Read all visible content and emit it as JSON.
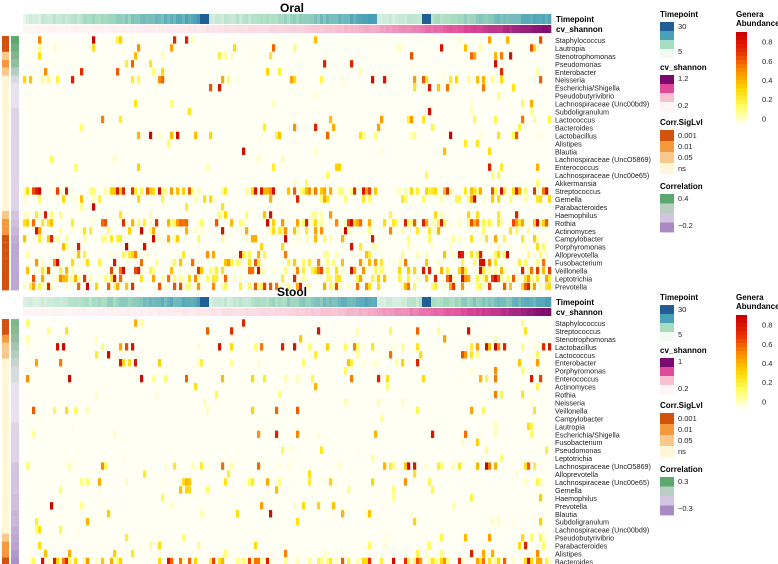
{
  "chart_data": [
    {
      "type": "heatmap",
      "title": "Oral",
      "annotation_labels": [
        "Timepoint",
        "cv_shannon"
      ],
      "rows": [
        "Staphylococcus",
        "Lautropia",
        "Stenotrophomonas",
        "Pseudomonas",
        "Enterobacter",
        "Neisseria",
        "Escherichia/Shigella",
        "Pseudobutyrivibrio",
        "Lachnospiraceae (Unc00bd9)",
        "Subdoligranulum",
        "Lactococcus",
        "Bacteroides",
        "Lactobacillus",
        "Alistipes",
        "Blautia",
        "Lachnospiraceae (UncO5869)",
        "Enterococcus",
        "Lachnospiraceae (Unc00e65)",
        "Akkermansia",
        "Streptococcus",
        "Gemella",
        "Parabacteroides",
        "Haemophilus",
        "Rothia",
        "Actinomyces",
        "Campylobacter",
        "Porphyromonas",
        "Alloprevotella",
        "Fusobacterium",
        "Veillonella",
        "Leptotrichia",
        "Prevotella"
      ],
      "row_density": [
        0.04,
        0.12,
        0.05,
        0.03,
        0.05,
        0.18,
        0.04,
        0.02,
        0.03,
        0.03,
        0.06,
        0.04,
        0.1,
        0.02,
        0.04,
        0.03,
        0.06,
        0.03,
        0.02,
        0.55,
        0.22,
        0.03,
        0.2,
        0.5,
        0.3,
        0.28,
        0.15,
        0.25,
        0.3,
        0.45,
        0.45,
        0.5
      ],
      "row_intensity": [
        0.6,
        0.55,
        0.5,
        0.6,
        0.6,
        0.45,
        0.5,
        0.3,
        0.35,
        0.35,
        0.45,
        0.4,
        0.5,
        0.3,
        0.35,
        0.35,
        0.4,
        0.35,
        0.3,
        0.6,
        0.35,
        0.3,
        0.4,
        0.55,
        0.4,
        0.35,
        0.35,
        0.4,
        0.45,
        0.55,
        0.5,
        0.5
      ],
      "corr_siglvl": [
        "0.001",
        "0.001",
        "0.05",
        "0.01",
        "0.05",
        "ns",
        "ns",
        "ns",
        "ns",
        "ns",
        "ns",
        "ns",
        "ns",
        "ns",
        "ns",
        "ns",
        "ns",
        "ns",
        "ns",
        "ns",
        "ns",
        "ns",
        "0.05",
        "0.01",
        "0.01",
        "0.001",
        "0.001",
        "0.001",
        "0.001",
        "0.001",
        "0.001",
        "0.001"
      ],
      "correlation": [
        0.4,
        0.35,
        0.3,
        0.25,
        0.15,
        0.05,
        0.0,
        0.0,
        0.0,
        -0.05,
        -0.05,
        -0.05,
        -0.05,
        -0.05,
        -0.05,
        -0.05,
        -0.05,
        -0.05,
        -0.05,
        -0.05,
        -0.05,
        -0.05,
        -0.1,
        -0.12,
        -0.15,
        -0.18,
        -0.2,
        -0.2,
        -0.2,
        -0.2,
        -0.2,
        -0.2
      ],
      "legends": {
        "timepoint": {
          "title": "Timepoint",
          "ticks": [
            "30",
            "5"
          ]
        },
        "cv_shannon": {
          "title": "cv_shannon",
          "ticks": [
            "1.2",
            "0.2"
          ]
        },
        "corr_siglvl": {
          "title": "Corr.SigLvl",
          "levels": [
            "0.001",
            "0.01",
            "0.05",
            "ns"
          ]
        },
        "correlation": {
          "title": "Correlation",
          "ticks": [
            "0.4",
            "−0.2"
          ]
        },
        "abundance": {
          "title_line1": "Genera",
          "title_line2": "Abundance",
          "ticks": [
            "0.8",
            "0.6",
            "0.4",
            "0.2",
            "0"
          ]
        }
      }
    },
    {
      "type": "heatmap",
      "title": "Stool",
      "annotation_labels": [
        "Timepoint",
        "cv_shannon"
      ],
      "rows": [
        "Staphylococcus",
        "Streptococcus",
        "Stenotrophomonas",
        "Lactobacillus",
        "Lactococcus",
        "Enterobacter",
        "Porphyromonas",
        "Enterococcus",
        "Actinomyces",
        "Rothia",
        "Neisseria",
        "Veillonella",
        "Campylobacter",
        "Lautropia",
        "Escherichia/Shigella",
        "Fusobacterium",
        "Pseudomonas",
        "Leptotrichia",
        "Lachnospiraceae (UncO5869)",
        "Alloprevotella",
        "Lachnospiraceae (Unc00e65)",
        "Gemella",
        "Haemophilus",
        "Prevotella",
        "Blautia",
        "Subdoligranulum",
        "Lachnospiraceae (Unc00bd9)",
        "Pseudobutyrivibrio",
        "Parabacteroides",
        "Alistipes",
        "Bacteroides",
        "Akkermansia"
      ],
      "row_density": [
        0.05,
        0.12,
        0.03,
        0.2,
        0.08,
        0.1,
        0.03,
        0.15,
        0.04,
        0.05,
        0.03,
        0.1,
        0.02,
        0.02,
        0.06,
        0.02,
        0.03,
        0.02,
        0.18,
        0.04,
        0.12,
        0.03,
        0.03,
        0.05,
        0.08,
        0.06,
        0.03,
        0.05,
        0.1,
        0.08,
        0.45,
        0.4
      ],
      "row_intensity": [
        0.55,
        0.6,
        0.5,
        0.65,
        0.5,
        0.6,
        0.4,
        0.65,
        0.4,
        0.4,
        0.35,
        0.45,
        0.3,
        0.3,
        0.45,
        0.3,
        0.35,
        0.3,
        0.45,
        0.35,
        0.4,
        0.3,
        0.3,
        0.35,
        0.35,
        0.35,
        0.3,
        0.35,
        0.4,
        0.4,
        0.6,
        0.5
      ],
      "corr_siglvl": [
        "0.001",
        "0.001",
        "0.01",
        "0.05",
        "0.05",
        "ns",
        "ns",
        "ns",
        "ns",
        "ns",
        "ns",
        "ns",
        "ns",
        "ns",
        "ns",
        "ns",
        "ns",
        "ns",
        "ns",
        "ns",
        "ns",
        "ns",
        "ns",
        "ns",
        "ns",
        "ns",
        "ns",
        "0.05",
        "0.01",
        "0.01",
        "0.001",
        "0.001"
      ],
      "correlation": [
        0.3,
        0.28,
        0.25,
        0.2,
        0.15,
        0.1,
        0.05,
        0.05,
        0.0,
        0.0,
        0.0,
        0.0,
        0.0,
        -0.05,
        -0.05,
        -0.05,
        -0.05,
        -0.05,
        -0.1,
        -0.1,
        -0.1,
        -0.1,
        -0.12,
        -0.12,
        -0.15,
        -0.15,
        -0.18,
        -0.2,
        -0.22,
        -0.25,
        -0.28,
        -0.3
      ],
      "legends": {
        "timepoint": {
          "title": "Timepoint",
          "ticks": [
            "30",
            "5"
          ]
        },
        "cv_shannon": {
          "title": "cv_shannon",
          "ticks": [
            "1",
            "0.2"
          ]
        },
        "corr_siglvl": {
          "title": "Corr.SigLvl",
          "levels": [
            "0.001",
            "0.01",
            "0.05",
            "ns"
          ]
        },
        "correlation": {
          "title": "Correlation",
          "ticks": [
            "0.3",
            "−0.3"
          ]
        },
        "abundance": {
          "title_line1": "Genera",
          "title_line2": "Abundance",
          "ticks": [
            "0.8",
            "0.6",
            "0.4",
            "0.2",
            "0"
          ]
        }
      }
    }
  ],
  "colors": {
    "abundance_scale": [
      "#FFFFFF",
      "#FFFF66",
      "#FFD700",
      "#FF8C00",
      "#E63000",
      "#CC0000"
    ],
    "timepoint_scale": [
      "#F2FAF2",
      "#A8DCC0",
      "#4AA0B8",
      "#1F5F96"
    ],
    "cv_shannon_scale": [
      "#FFF5F5",
      "#F7BFD0",
      "#E04A9A",
      "#7A0A6E"
    ],
    "corr_sig": {
      "0.001": "#D2530D",
      "0.01": "#F59A3C",
      "0.05": "#F8C98A",
      "ns": "#FFF6D8"
    },
    "correlation_scale": [
      "#A98AC4",
      "#E8E2EE",
      "#5BA96E"
    ]
  }
}
